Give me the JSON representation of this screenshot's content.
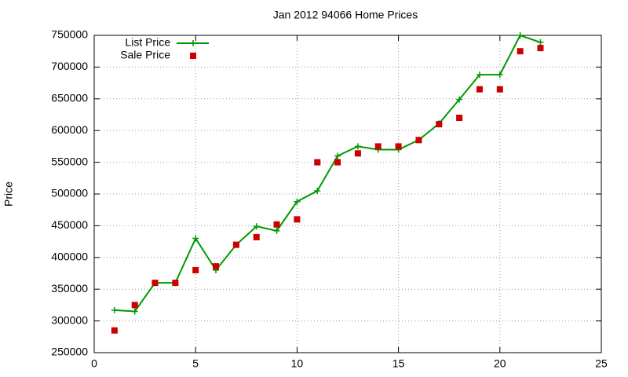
{
  "chart_data": {
    "type": "line",
    "title": "Jan 2012 94066 Home Prices",
    "y_label": "Price",
    "x": [
      1,
      2,
      3,
      4,
      5,
      6,
      7,
      8,
      9,
      10,
      11,
      12,
      13,
      14,
      15,
      16,
      17,
      18,
      19,
      20,
      21,
      22
    ],
    "series": [
      {
        "name": "List Price",
        "color": "#009900",
        "style": "linespoints",
        "values": [
          317000,
          315000,
          360000,
          360000,
          430000,
          380000,
          420000,
          449000,
          442000,
          488000,
          505000,
          560000,
          575000,
          570000,
          570000,
          585000,
          611000,
          649000,
          688000,
          688000,
          750000,
          739000
        ]
      },
      {
        "name": "Sale Price",
        "color": "#cc0000",
        "style": "points",
        "values": [
          285000,
          325000,
          360000,
          360000,
          380000,
          386000,
          420000,
          432000,
          452000,
          460000,
          550000,
          550000,
          564000,
          575000,
          575000,
          585000,
          610000,
          620000,
          665000,
          665000,
          725000,
          730000
        ]
      }
    ],
    "xlim": [
      0,
      25
    ],
    "xticks": [
      0,
      5,
      10,
      15,
      20,
      25
    ],
    "ylim": [
      250000,
      750000
    ],
    "yticks": [
      250000,
      300000,
      350000,
      400000,
      450000,
      500000,
      550000,
      600000,
      650000,
      700000,
      750000
    ],
    "grid": true,
    "legend": "top-left"
  }
}
